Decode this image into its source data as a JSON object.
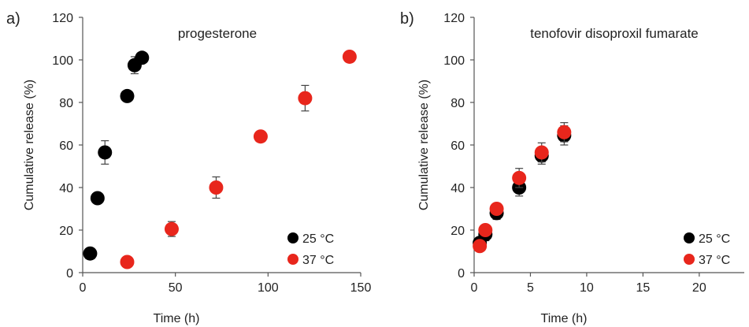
{
  "chart_data": [
    {
      "type": "scatter",
      "panel_label": "a)",
      "annotation": "progesterone",
      "xlabel": "Time (h)",
      "ylabel": "Cumulative release (%)",
      "xlim": [
        0,
        150
      ],
      "ylim": [
        0,
        120
      ],
      "xticks": [
        "0",
        "50",
        "100",
        "150"
      ],
      "yticks": [
        "0",
        "20",
        "40",
        "60",
        "80",
        "100",
        "120"
      ],
      "grid": false,
      "legend_position": "bottom-right",
      "series": [
        {
          "name": "25 °C",
          "color": "#000000",
          "points": [
            {
              "x": 4,
              "y": 9,
              "err": 0
            },
            {
              "x": 8,
              "y": 35,
              "err": 0
            },
            {
              "x": 12,
              "y": 56.5,
              "err": 5.5
            },
            {
              "x": 24,
              "y": 83,
              "err": 0
            },
            {
              "x": 28,
              "y": 97.5,
              "err": 4
            },
            {
              "x": 32,
              "y": 101,
              "err": 0
            }
          ]
        },
        {
          "name": "37 °C",
          "color": "#e8261c",
          "points": [
            {
              "x": 24,
              "y": 5,
              "err": 0
            },
            {
              "x": 48,
              "y": 20.5,
              "err": 3.5
            },
            {
              "x": 72,
              "y": 40,
              "err": 5
            },
            {
              "x": 96,
              "y": 64,
              "err": 0
            },
            {
              "x": 120,
              "y": 82,
              "err": 6
            },
            {
              "x": 144,
              "y": 101.5,
              "err": 0
            }
          ]
        }
      ]
    },
    {
      "type": "scatter",
      "panel_label": "b)",
      "annotation": "tenofovir disoproxil fumarate",
      "xlabel": "Time (h)",
      "ylabel": "Cumulative release (%)",
      "xlim": [
        0,
        24
      ],
      "ylim": [
        0,
        120
      ],
      "xticks": [
        "0",
        "5",
        "10",
        "15",
        "20"
      ],
      "yticks": [
        "0",
        "20",
        "40",
        "60",
        "80",
        "100",
        "120"
      ],
      "grid": false,
      "legend_position": "bottom-right",
      "series": [
        {
          "name": "25 °C",
          "color": "#000000",
          "points": [
            {
              "x": 0.5,
              "y": 14,
              "err": 2
            },
            {
              "x": 1,
              "y": 18,
              "err": 3
            },
            {
              "x": 2,
              "y": 28,
              "err": 3
            },
            {
              "x": 4,
              "y": 40,
              "err": 4
            },
            {
              "x": 6,
              "y": 55,
              "err": 4
            },
            {
              "x": 8,
              "y": 64.5,
              "err": 4.5
            }
          ]
        },
        {
          "name": "37 °C",
          "color": "#e8261c",
          "points": [
            {
              "x": 0.5,
              "y": 12.5,
              "err": 2
            },
            {
              "x": 1,
              "y": 20,
              "err": 2
            },
            {
              "x": 2,
              "y": 30,
              "err": 2.5
            },
            {
              "x": 4,
              "y": 44.5,
              "err": 4.5
            },
            {
              "x": 6,
              "y": 56.5,
              "err": 4.5
            },
            {
              "x": 8,
              "y": 66,
              "err": 4.5
            }
          ]
        }
      ]
    }
  ]
}
